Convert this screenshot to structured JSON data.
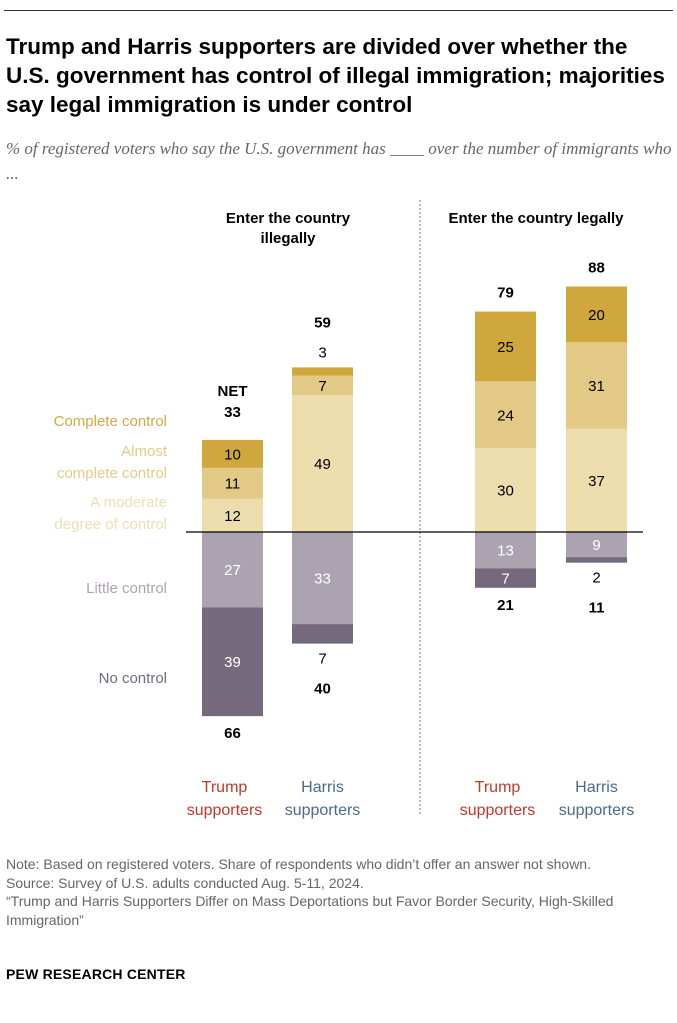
{
  "title": "Trump and Harris supporters are divided over whether the U.S. government has control of illegal immigration; majorities say legal immigration is under control",
  "subtitle": "% of registered voters who say the U.S. government has ____ over the number of immigrants who ...",
  "chart_data": {
    "type": "bar",
    "stacked": true,
    "diverging": true,
    "panels": [
      {
        "title": "Enter the country illegally",
        "title_lines": [
          "Enter the country",
          "illegally"
        ]
      },
      {
        "title": "Enter the country legally",
        "title_lines": [
          "Enter the country legally"
        ]
      }
    ],
    "groups": [
      {
        "label_lines": [
          "Trump",
          "supporters"
        ],
        "color": "#C0392B"
      },
      {
        "label_lines": [
          "Harris",
          "supporters"
        ],
        "color": "#4A6A8A"
      }
    ],
    "categories_legend": [
      {
        "name": "Complete control",
        "lines": [
          "Complete control"
        ],
        "color": "#CFA73C",
        "text_color": "#D2AA45",
        "side": "positive"
      },
      {
        "name": "Almost complete control",
        "lines": [
          "Almost",
          "complete control"
        ],
        "color": "#E2C986",
        "text_color": "#E3CB8A",
        "side": "positive"
      },
      {
        "name": "A moderate degree of control",
        "lines": [
          "A moderate",
          "degree of control"
        ],
        "color": "#EDDDAD",
        "text_color": "#EEDFB0",
        "side": "positive"
      },
      {
        "name": "Little control",
        "lines": [
          "Little control"
        ],
        "color": "#ACA3B1",
        "text_color": "#ACA3B1",
        "side": "negative"
      },
      {
        "name": "No control",
        "lines": [
          "No control"
        ],
        "color": "#756A7D",
        "text_color": "#756A7D",
        "side": "negative"
      }
    ],
    "net_label": "NET",
    "bars": [
      {
        "panel": 0,
        "group": 0,
        "values": [
          10,
          11,
          12,
          27,
          39
        ],
        "net_positive": 33,
        "net_negative": 66
      },
      {
        "panel": 0,
        "group": 1,
        "values": [
          3,
          7,
          49,
          33,
          7
        ],
        "net_positive": 59,
        "net_negative": 40
      },
      {
        "panel": 1,
        "group": 0,
        "values": [
          25,
          24,
          30,
          13,
          7
        ],
        "net_positive": 79,
        "net_negative": 21
      },
      {
        "panel": 1,
        "group": 1,
        "values": [
          20,
          31,
          37,
          9,
          2
        ],
        "net_positive": 88,
        "net_negative": 11
      }
    ]
  },
  "notes": {
    "note": "Note: Based on registered voters. Share of respondents who didn’t offer an answer not shown.",
    "source": "Source: Survey of U.S. adults conducted Aug. 5-11, 2024.",
    "report": "“Trump and Harris Supporters Differ on Mass Deportations but Favor Border Security, High-Skilled Immigration”"
  },
  "brand": "PEW RESEARCH CENTER"
}
